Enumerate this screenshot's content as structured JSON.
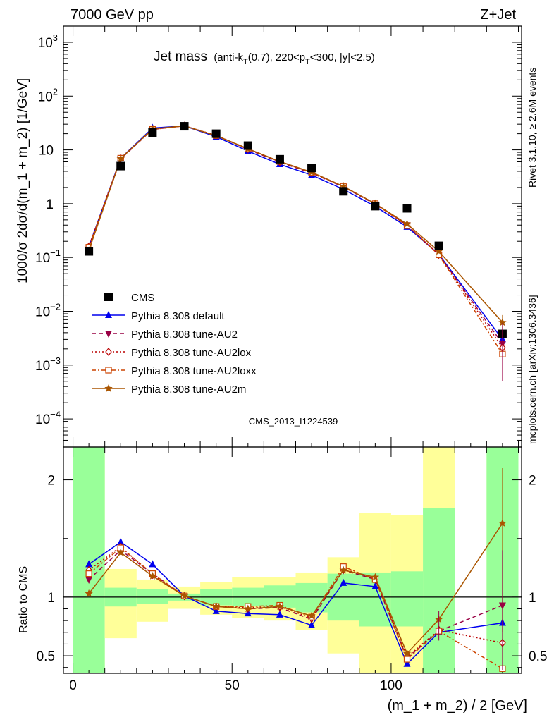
{
  "header": {
    "left": "7000 GeV pp",
    "right": "Z+Jet"
  },
  "title": {
    "main": "Jet mass",
    "sub_1": "(anti-k",
    "sub_T1": "T",
    "sub_2": "(0.7), 220<p",
    "sub_T2": "T",
    "sub_3": "<300, |y|<2.5)"
  },
  "side_labels": {
    "rivet": "Rivet 3.1.10, ≥ 2.6M events",
    "mcplots": "mcplots.cern.ch [arXiv:1306.3436]"
  },
  "watermark": "CMS_2013_I1224539",
  "chart_data": [
    {
      "type": "scatter",
      "panel": "main",
      "ylabel": "1000/σ 2dσ/d(m_1 + m_2) [1/GeV]",
      "yscale": "log",
      "ylim": [
        3e-05,
        2000
      ],
      "xlim": [
        -3,
        141
      ],
      "y_ticks": [
        {
          "v": 1000,
          "m": "10",
          "e": "3"
        },
        {
          "v": 100,
          "m": "10",
          "e": "2"
        },
        {
          "v": 10,
          "m": "10",
          "e": ""
        },
        {
          "v": 1,
          "m": "1",
          "e": ""
        },
        {
          "v": 0.1,
          "m": "10",
          "e": "−1"
        },
        {
          "v": 0.01,
          "m": "10",
          "e": "−2"
        },
        {
          "v": 0.001,
          "m": "10",
          "e": "−3"
        },
        {
          "v": 0.0001,
          "m": "10",
          "e": "−4"
        }
      ],
      "data": {
        "name": "CMS",
        "x": [
          5,
          15,
          25,
          35,
          45,
          55,
          65,
          75,
          85,
          95,
          105,
          115,
          135
        ],
        "y": [
          0.13,
          5.0,
          21,
          27.5,
          20,
          12,
          6.7,
          4.6,
          1.7,
          0.9,
          0.82,
          0.165,
          0.0038
        ]
      },
      "series": [
        {
          "name": "Pythia 8.308 default",
          "color": "#0000ee",
          "dash": "",
          "marker": "triangle-up",
          "x": [
            5,
            15,
            25,
            35,
            45,
            55,
            65,
            75,
            85,
            95,
            105,
            115,
            135
          ],
          "y": [
            0.16,
            7.0,
            25.5,
            28,
            17.5,
            9.5,
            5.4,
            3.4,
            1.85,
            0.89,
            0.37,
            0.115,
            0.003
          ]
        },
        {
          "name": "Pythia 8.308 tune-AU2",
          "color": "#990044",
          "dash": "6,4",
          "marker": "triangle-down",
          "x": [
            5,
            15,
            25,
            35,
            45,
            55,
            65,
            75,
            85,
            95,
            105,
            115,
            135
          ],
          "y": [
            0.145,
            6.8,
            24,
            28,
            18.5,
            10.2,
            5.9,
            3.7,
            2.05,
            0.98,
            0.4,
            0.112,
            0.0025
          ]
        },
        {
          "name": "Pythia 8.308 tune-AU2lox",
          "color": "#bb0000",
          "dash": "2,3",
          "marker": "diamond-open",
          "x": [
            5,
            15,
            25,
            35,
            45,
            55,
            65,
            75,
            85,
            95,
            105,
            115,
            135
          ],
          "y": [
            0.16,
            7.0,
            24,
            28,
            18.5,
            10.5,
            6.0,
            3.8,
            2.1,
            1.0,
            0.4,
            0.113,
            0.0021
          ]
        },
        {
          "name": "Pythia 8.308 tune-AU2loxx",
          "color": "#cc4400",
          "dash": "6,3,2,3",
          "marker": "square-open",
          "x": [
            5,
            15,
            25,
            35,
            45,
            55,
            65,
            75,
            85,
            95,
            105,
            115,
            135
          ],
          "y": [
            0.155,
            7.0,
            24,
            28,
            18.5,
            10.5,
            6.1,
            3.8,
            2.1,
            1.0,
            0.39,
            0.112,
            0.0016
          ]
        },
        {
          "name": "Pythia 8.308 tune-AU2m",
          "color": "#aa5500",
          "dash": "",
          "marker": "star",
          "x": [
            5,
            15,
            25,
            35,
            45,
            55,
            65,
            75,
            85,
            95,
            105,
            115,
            135
          ],
          "y": [
            0.135,
            6.9,
            24.5,
            28,
            18.3,
            10.5,
            6.1,
            3.85,
            2.1,
            1.0,
            0.42,
            0.13,
            0.0062
          ]
        }
      ]
    },
    {
      "type": "scatter",
      "panel": "ratio",
      "ylabel": "Ratio to CMS",
      "xlabel": "(m_1 + m_2) / 2 [GeV]",
      "ylim": [
        0.35,
        2.28
      ],
      "xlim": [
        -3,
        141
      ],
      "y_ticks": [
        0.5,
        1,
        2
      ],
      "x_ticks": [
        0,
        50,
        100
      ],
      "reference": 1,
      "bands": [
        {
          "x": [
            0,
            10
          ],
          "green": [
            0.35,
            2.28
          ],
          "yellow": [
            0.35,
            2.28
          ]
        },
        {
          "x": [
            10,
            20
          ],
          "green": [
            0.92,
            1.08
          ],
          "yellow": [
            0.65,
            1.24
          ]
        },
        {
          "x": [
            20,
            30
          ],
          "green": [
            0.94,
            1.07
          ],
          "yellow": [
            0.79,
            1.15
          ]
        },
        {
          "x": [
            30,
            40
          ],
          "green": [
            0.97,
            1.03
          ],
          "yellow": [
            0.9,
            1.09
          ]
        },
        {
          "x": [
            40,
            50
          ],
          "green": [
            0.93,
            1.07
          ],
          "yellow": [
            0.85,
            1.13
          ]
        },
        {
          "x": [
            50,
            60
          ],
          "green": [
            0.92,
            1.08
          ],
          "yellow": [
            0.82,
            1.17
          ]
        },
        {
          "x": [
            60,
            70
          ],
          "green": [
            0.91,
            1.1
          ],
          "yellow": [
            0.8,
            1.17
          ]
        },
        {
          "x": [
            70,
            80
          ],
          "green": [
            0.87,
            1.12
          ],
          "yellow": [
            0.72,
            1.21
          ]
        },
        {
          "x": [
            80,
            90
          ],
          "green": [
            0.8,
            1.2
          ],
          "yellow": [
            0.52,
            1.34
          ]
        },
        {
          "x": [
            90,
            100
          ],
          "green": [
            0.75,
            1.21
          ],
          "yellow": [
            0.35,
            1.72
          ]
        },
        {
          "x": [
            100,
            110
          ],
          "green": [
            0.75,
            1.22
          ],
          "yellow": [
            0.35,
            1.7
          ]
        },
        {
          "x": [
            110,
            120
          ],
          "green": [
            0.35,
            1.76
          ],
          "yellow": [
            0.35,
            2.28
          ]
        },
        {
          "x": [
            130,
            140
          ],
          "green": [
            0.35,
            2.28
          ],
          "yellow": [
            0.35,
            2.28
          ]
        }
      ],
      "series": [
        {
          "name": "Pythia 8.308 default",
          "x": [
            5,
            15,
            25,
            35,
            45,
            55,
            65,
            75,
            85,
            95,
            105,
            115,
            135
          ],
          "y": [
            1.28,
            1.47,
            1.28,
            1.01,
            0.88,
            0.86,
            0.85,
            0.76,
            1.12,
            1.09,
            0.43,
            0.7,
            0.78
          ]
        },
        {
          "name": "Pythia 8.308 tune-AU2",
          "x": [
            5,
            15,
            25,
            35,
            45,
            55,
            65,
            75,
            85,
            95,
            105,
            115,
            135
          ],
          "y": [
            1.15,
            1.4,
            1.2,
            1.01,
            0.92,
            0.9,
            0.91,
            0.81,
            1.23,
            1.15,
            0.48,
            0.71,
            0.93
          ]
        },
        {
          "name": "Pythia 8.308 tune-AU2lox",
          "x": [
            5,
            15,
            25,
            35,
            45,
            55,
            65,
            75,
            85,
            95,
            105,
            115,
            135
          ],
          "y": [
            1.23,
            1.43,
            1.19,
            1.01,
            0.92,
            0.91,
            0.92,
            0.82,
            1.24,
            1.16,
            0.49,
            0.72,
            0.61
          ]
        },
        {
          "name": "Pythia 8.308 tune-AU2loxx",
          "x": [
            5,
            15,
            25,
            35,
            45,
            55,
            65,
            75,
            85,
            95,
            105,
            115,
            135
          ],
          "y": [
            1.2,
            1.42,
            1.2,
            1.01,
            0.92,
            0.92,
            0.93,
            0.83,
            1.26,
            1.15,
            0.47,
            0.71,
            0.39
          ]
        },
        {
          "name": "Pythia 8.308 tune-AU2m",
          "x": [
            5,
            15,
            25,
            35,
            45,
            55,
            65,
            75,
            85,
            95,
            105,
            115,
            135
          ],
          "y": [
            1.03,
            1.38,
            1.18,
            1.01,
            0.92,
            0.9,
            0.92,
            0.84,
            1.23,
            1.17,
            0.52,
            0.81,
            1.63
          ]
        }
      ]
    }
  ]
}
